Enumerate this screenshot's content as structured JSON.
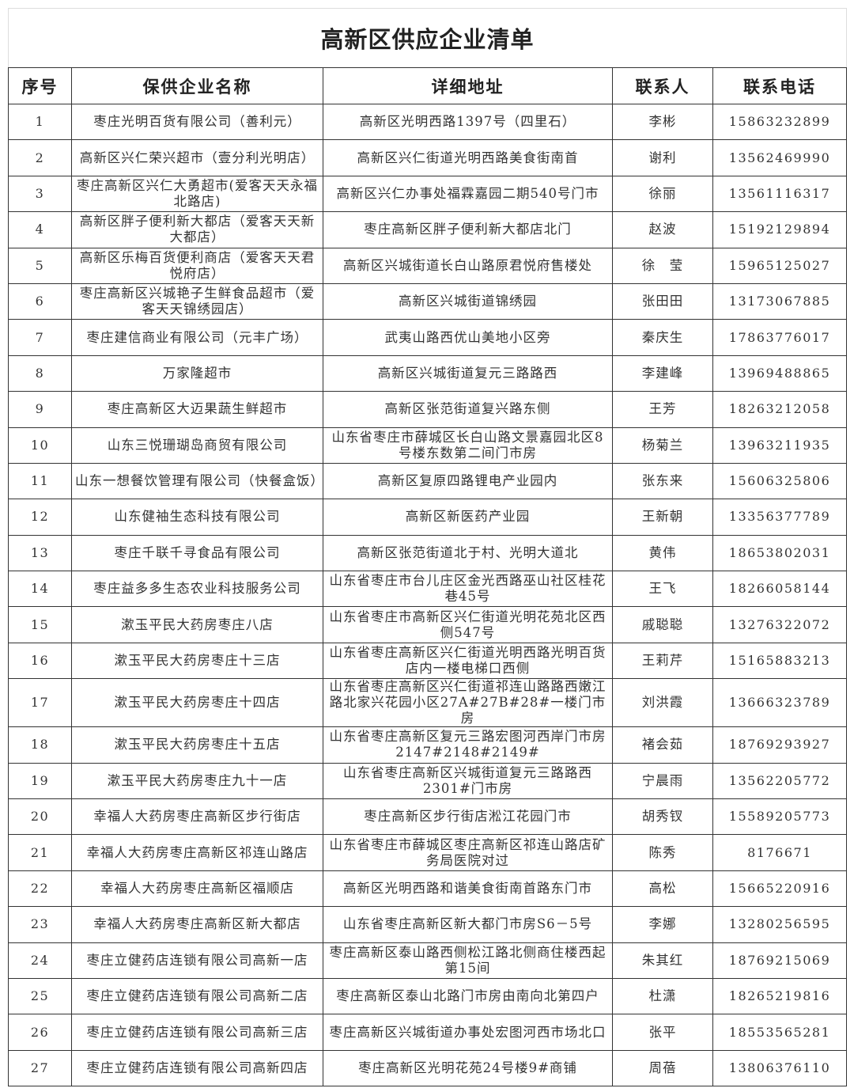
{
  "title": "高新区供应企业清单",
  "headers": [
    "序号",
    "保供企业名称",
    "详细地址",
    "联系人",
    "联系电话"
  ],
  "rows": [
    {
      "no": "1",
      "name": "枣庄光明百货有限公司（善利元）",
      "address": "高新区光明西路1397号（四里石）",
      "contact": "李彬",
      "phone": "15863232899"
    },
    {
      "no": "2",
      "name": "高新区兴仁荣兴超市（壹分利光明店）",
      "address": "高新区兴仁街道光明西路美食街南首",
      "contact": "谢利",
      "phone": "13562469990"
    },
    {
      "no": "3",
      "name": "枣庄高新区兴仁大勇超市(爱客天天永福北路店)",
      "address": "高新区兴仁办事处福霖嘉园二期540号门市",
      "contact": "徐丽",
      "phone": "13561116317"
    },
    {
      "no": "4",
      "name": "高新区胖子便利新大都店（爱客天天新大都店）",
      "address": "枣庄高新区胖子便利新大都店北门",
      "contact": "赵波",
      "phone": "15192129894"
    },
    {
      "no": "5",
      "name": "高新区乐梅百货便利商店（爱客天天君悦府店）",
      "address": "高新区兴城街道长白山路原君悦府售楼处",
      "contact": "徐　莹",
      "phone": "15965125027"
    },
    {
      "no": "6",
      "name": "枣庄高新区兴城艳子生鲜食品超市（爱客天天锦绣园店）",
      "address": "高新区兴城街道锦绣园",
      "contact": "张田田",
      "phone": "13173067885"
    },
    {
      "no": "7",
      "name": "枣庄建信商业有限公司（元丰广场）",
      "address": "武夷山路西优山美地小区旁",
      "contact": "秦庆生",
      "phone": "17863776017"
    },
    {
      "no": "8",
      "name": "万家隆超市",
      "address": "高新区兴城街道复元三路路西",
      "contact": "李建峰",
      "phone": "13969488865"
    },
    {
      "no": "9",
      "name": "枣庄高新区大迈果蔬生鲜超市",
      "address": "高新区张范街道复兴路东侧",
      "contact": "王芳",
      "phone": "18263212058"
    },
    {
      "no": "10",
      "name": "山东三悦珊瑚岛商贸有限公司",
      "address": "山东省枣庄市薛城区长白山路文景嘉园北区8号楼东数第二间门市房",
      "contact": "杨菊兰",
      "phone": "13963211935"
    },
    {
      "no": "11",
      "name": "山东一想餐饮管理有限公司（快餐盒饭）",
      "address": "高新区复原四路锂电产业园内",
      "contact": "张东来",
      "phone": "15606325806"
    },
    {
      "no": "12",
      "name": "山东健袖生态科技有限公司",
      "address": "高新区新医药产业园",
      "contact": "王新朝",
      "phone": "13356377789"
    },
    {
      "no": "13",
      "name": "枣庄千联千寻食品有限公司",
      "address": "高新区张范街道北于村、光明大道北",
      "contact": "黄伟",
      "phone": "18653802031"
    },
    {
      "no": "14",
      "name": "枣庄益多多生态农业科技服务公司",
      "address": "山东省枣庄市台儿庄区金光西路巫山社区桂花巷45号",
      "contact": "王飞",
      "phone": "18266058144"
    },
    {
      "no": "15",
      "name": "漱玉平民大药房枣庄八店",
      "address": "山东省枣庄市高新区兴仁街道光明花苑北区西侧547号",
      "contact": "戚聪聪",
      "phone": "13276322072"
    },
    {
      "no": "16",
      "name": "漱玉平民大药房枣庄十三店",
      "address": "山东省枣庄高新区兴仁街道光明西路光明百货店内一楼电梯口西侧",
      "contact": "王莉芹",
      "phone": "15165883213"
    },
    {
      "no": "17",
      "name": "漱玉平民大药房枣庄十四店",
      "address": "山东省枣庄高新区兴仁街道祁连山路路西嫩江路北家兴花园小区27A#27B#28#一楼门市房",
      "contact": "刘洪霞",
      "phone": "13666323789"
    },
    {
      "no": "18",
      "name": "漱玉平民大药房枣庄十五店",
      "address": "山东省枣庄高新区复元三路宏图河西岸门市房2147#2148#2149#",
      "contact": "褚会茹",
      "phone": "18769293927"
    },
    {
      "no": "19",
      "name": "漱玉平民大药房枣庄九十一店",
      "address": "山东省枣庄高新区兴城街道复元三路路西2301#门市房",
      "contact": "宁晨雨",
      "phone": "13562205772"
    },
    {
      "no": "20",
      "name": "幸福人大药房枣庄高新区步行街店",
      "address": "枣庄高新区步行街店淞江花园门市",
      "contact": "胡秀钗",
      "phone": "15589205773"
    },
    {
      "no": "21",
      "name": "幸福人大药房枣庄高新区祁连山路店",
      "address": "山东省枣庄市薛城区枣庄高新区祁连山路店矿务局医院对过",
      "contact": "陈秀",
      "phone": "8176671"
    },
    {
      "no": "22",
      "name": "幸福人大药房枣庄高新区福顺店",
      "address": "高新区光明西路和谐美食街南首路东门市",
      "contact": "高松",
      "phone": "15665220916"
    },
    {
      "no": "23",
      "name": "幸福人大药房枣庄高新区新大都店",
      "address": "山东省枣庄高新区新大都门市房S6－5号",
      "contact": "李娜",
      "phone": "13280256595"
    },
    {
      "no": "24",
      "name": "枣庄立健药店连锁有限公司高新一店",
      "address": "枣庄高新区泰山路西侧松江路北侧商住楼西起第15间",
      "contact": "朱其红",
      "phone": "18769215069"
    },
    {
      "no": "25",
      "name": "枣庄立健药店连锁有限公司高新二店",
      "address": "枣庄高新区泰山北路门市房由南向北第四户",
      "contact": "杜潇",
      "phone": "18265219816"
    },
    {
      "no": "26",
      "name": "枣庄立健药店连锁有限公司高新三店",
      "address": "枣庄高新区兴城街道办事处宏图河西市场北口",
      "contact": "张平",
      "phone": "18553565281"
    },
    {
      "no": "27",
      "name": "枣庄立健药店连锁有限公司高新四店",
      "address": "枣庄高新区光明花苑24号楼9#商铺",
      "contact": "周蓓",
      "phone": "13806376110"
    }
  ]
}
